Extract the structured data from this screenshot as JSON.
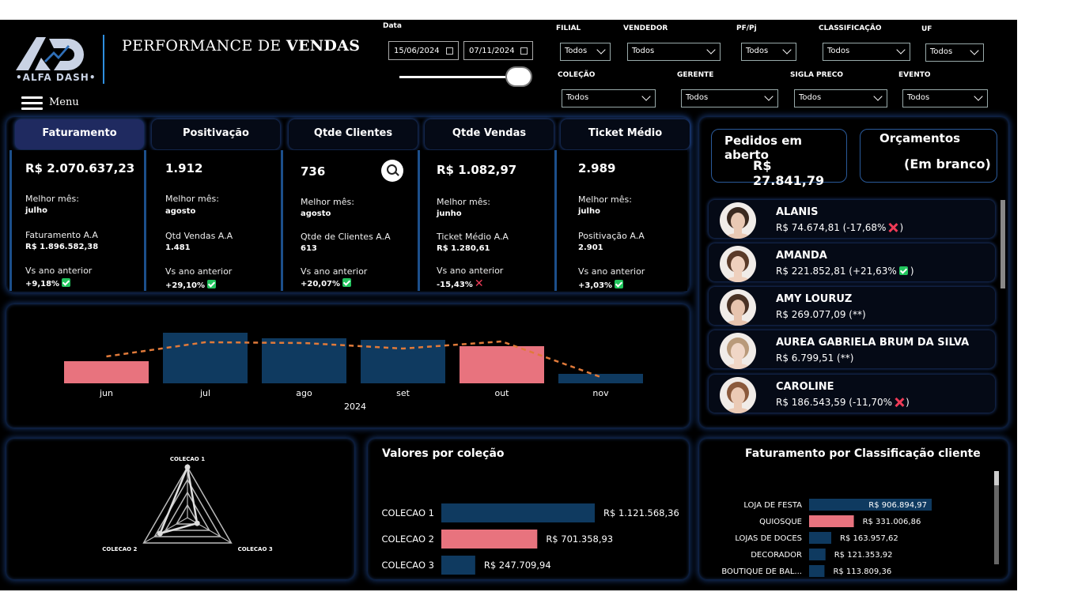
{
  "header": {
    "title_prefix": "PERFORMANCE DE",
    "title_bold": "VENDAS",
    "brand": "•ALFA DASH•",
    "logo_letters": "AD",
    "menu_label": "Menu"
  },
  "date_filter": {
    "label": "Data",
    "start": "15/06/2024",
    "end": "07/11/2024"
  },
  "filters": [
    {
      "label": "FILIAL",
      "value": "Todos"
    },
    {
      "label": "VENDEDOR",
      "value": "Todos"
    },
    {
      "label": "PF/Pj",
      "value": "Todos"
    },
    {
      "label": "CLASSIFICAÇÃO",
      "value": "Todos"
    },
    {
      "label": "UF",
      "value": "Todos"
    },
    {
      "label": "COLEÇÃO",
      "value": "Todos"
    },
    {
      "label": "GERENTE",
      "value": "Todos"
    },
    {
      "label": "SIGLA PRECO",
      "value": "Todos"
    },
    {
      "label": "EVENTO",
      "value": "Todos"
    }
  ],
  "kpis": [
    {
      "tab": "Faturamento",
      "value": "R$ 2.070.637,23",
      "best_label": "Melhor mês:",
      "best": "julho",
      "prev_label": "Faturamento A.A",
      "prev": "R$ 1.896.582,38",
      "vs_label": "Vs ano anterior",
      "vs": "+9,18%",
      "trend": "up"
    },
    {
      "tab": "Positivação",
      "value": "1.912",
      "best_label": "Melhor mês:",
      "best": "agosto",
      "prev_label": "Qtd Vendas A.A",
      "prev": "1.481",
      "vs_label": "Vs ano anterior",
      "vs": "+29,10%",
      "trend": "up"
    },
    {
      "tab": "Qtde Clientes",
      "value": "736",
      "best_label": "Melhor mês:",
      "best": "agosto",
      "prev_label": "Qtde de Clientes A.A",
      "prev": "613",
      "vs_label": "Vs ano anterior",
      "vs": "+20,07%",
      "trend": "up"
    },
    {
      "tab": "Qtde Vendas",
      "value": "R$ 1.082,97",
      "best_label": "Melhor mês:",
      "best": "junho",
      "prev_label": "Ticket Médio A.A",
      "prev": "R$ 1.280,61",
      "vs_label": "Vs ano anterior",
      "vs": "-15,43%",
      "trend": "down"
    },
    {
      "tab": "Ticket Médio",
      "value": "2.989",
      "best_label": "Melhor mês:",
      "best": "julho",
      "prev_label": "Positivação A.A",
      "prev": "2.901",
      "vs_label": "Vs ano anterior",
      "vs": "+3,03%",
      "trend": "up"
    }
  ],
  "cards": {
    "open_orders_label": "Pedidos em aberto",
    "open_orders_value": "R$ 27.841,79",
    "budgets_label": "Orçamentos",
    "budgets_value": "(Em branco)"
  },
  "sellers": [
    {
      "name": "ALANIS",
      "value": "R$ 74.674,81 (-17,68%",
      "close": ")",
      "trend": "down"
    },
    {
      "name": "AMANDA",
      "value": "R$ 221.852,81 (+21,63%",
      "close": ")",
      "trend": "up"
    },
    {
      "name": "AMY LOURUZ",
      "value": "R$ 269.077,09 (**)",
      "close": "",
      "trend": "none"
    },
    {
      "name": "AUREA GABRIELA BRUM DA SILVA",
      "value": "R$ 6.799,51 (**)",
      "close": "",
      "trend": "none"
    },
    {
      "name": "CAROLINE",
      "value": "R$ 186.543,59 (-11,70%",
      "close": ")",
      "trend": "down"
    }
  ],
  "chart_data": [
    {
      "type": "bar",
      "title": "",
      "xlabel": "2024",
      "categories": [
        "jun",
        "jul",
        "ago",
        "set",
        "out",
        "nov"
      ],
      "values": [
        28,
        64,
        57,
        55,
        47,
        12
      ],
      "reference_line": [
        34,
        52,
        51,
        44,
        53,
        8
      ],
      "bar_colors": [
        "#e8737e",
        "#0f3a60",
        "#0f3a60",
        "#0f3a60",
        "#e8737e",
        "#0f3a60"
      ],
      "line_color": "#e07a3a",
      "ylim": [
        0,
        70
      ],
      "grid": false
    },
    {
      "type": "radar",
      "categories": [
        "COLECAO 1",
        "COLECAO 2",
        "COLECAO 3"
      ],
      "values": [
        1121568.36,
        701358.93,
        247709.94
      ]
    },
    {
      "type": "bar",
      "orientation": "horizontal",
      "title": "Valores por coleção",
      "categories": [
        "COLECAO 1",
        "COLECAO 2",
        "COLECAO 3"
      ],
      "values": [
        1121568.36,
        701358.93,
        247709.94
      ],
      "labels": [
        "R$ 1.121.568,36",
        "R$ 701.358,93",
        "R$ 247.709,94"
      ],
      "bar_colors": [
        "#0f3a60",
        "#e8737e",
        "#0f3a60"
      ]
    },
    {
      "type": "bar",
      "orientation": "horizontal",
      "title": "Faturamento por Classificação cliente",
      "categories": [
        "LOJA DE FESTA",
        "QUIOSQUE",
        "LOJAS DE DOCES",
        "DECORADOR",
        "BOUTIQUE DE BAL..."
      ],
      "values": [
        906894.97,
        331006.86,
        163957.62,
        121353.92,
        113809.36
      ],
      "labels": [
        "R$ 906.894,97",
        "R$ 331.006,86",
        "R$ 163.957,62",
        "R$ 121.353,92",
        "R$ 113.809,36"
      ],
      "bar_colors": [
        "#0f3a60",
        "#e8737e",
        "#0f3a60",
        "#0f3a60",
        "#0f3a60"
      ]
    }
  ],
  "colors": {
    "accent_blue": "#0f3a60",
    "accent_pink": "#e8737e",
    "up": "#22c55e",
    "down": "#ef3b57"
  }
}
